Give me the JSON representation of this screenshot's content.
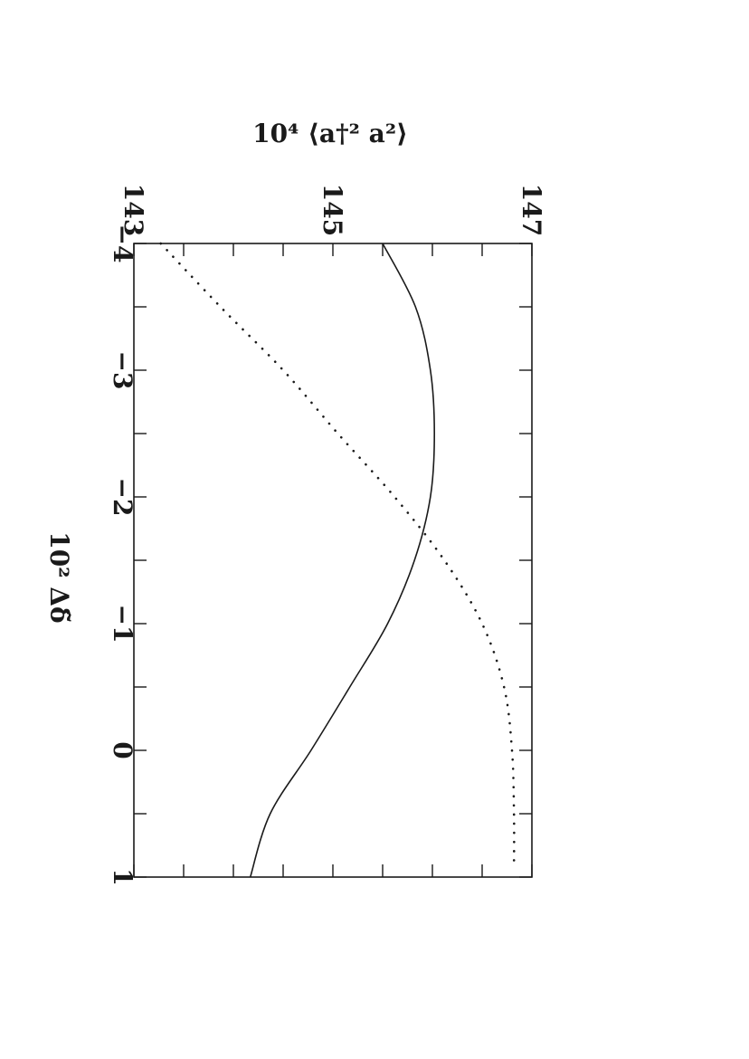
{
  "chart_data": {
    "type": "line",
    "orientation": "rotated-90-clockwise",
    "xlabel": "10² Δδ̃",
    "ylabel": "10⁴ ⟨a†² a²⟩",
    "xlim": [
      -4,
      1
    ],
    "ylim": [
      143,
      147
    ],
    "x_ticks": [
      "−4",
      "−3",
      "−2",
      "−1",
      "0",
      "1"
    ],
    "x_tick_values": [
      -4,
      -3,
      -2,
      -1,
      0,
      1
    ],
    "y_ticks": [
      "143",
      "145",
      "147"
    ],
    "y_tick_values": [
      143,
      145,
      147
    ],
    "x_minor_step": 0.5,
    "y_minor_step": 0.5,
    "grid": false,
    "series": [
      {
        "style": "solid",
        "color": "#1a1a1a",
        "x": [
          -4.0,
          -3.5,
          -3.0,
          -2.5,
          -2.0,
          -1.5,
          -1.0,
          -0.5,
          0.0,
          0.5,
          1.0
        ],
        "y": [
          145.5,
          145.83,
          145.98,
          146.02,
          145.98,
          145.82,
          145.55,
          145.17,
          144.78,
          144.37,
          144.17
        ]
      },
      {
        "style": "dotted",
        "color": "#1a1a1a",
        "x": [
          -4.0,
          -3.5,
          -3.0,
          -2.5,
          -2.0,
          -1.5,
          -1.0,
          -0.5,
          0.0,
          0.5,
          0.9
        ],
        "y": [
          143.27,
          143.87,
          144.5,
          145.05,
          145.62,
          146.12,
          146.5,
          146.72,
          146.8,
          146.82,
          146.82
        ]
      }
    ]
  }
}
